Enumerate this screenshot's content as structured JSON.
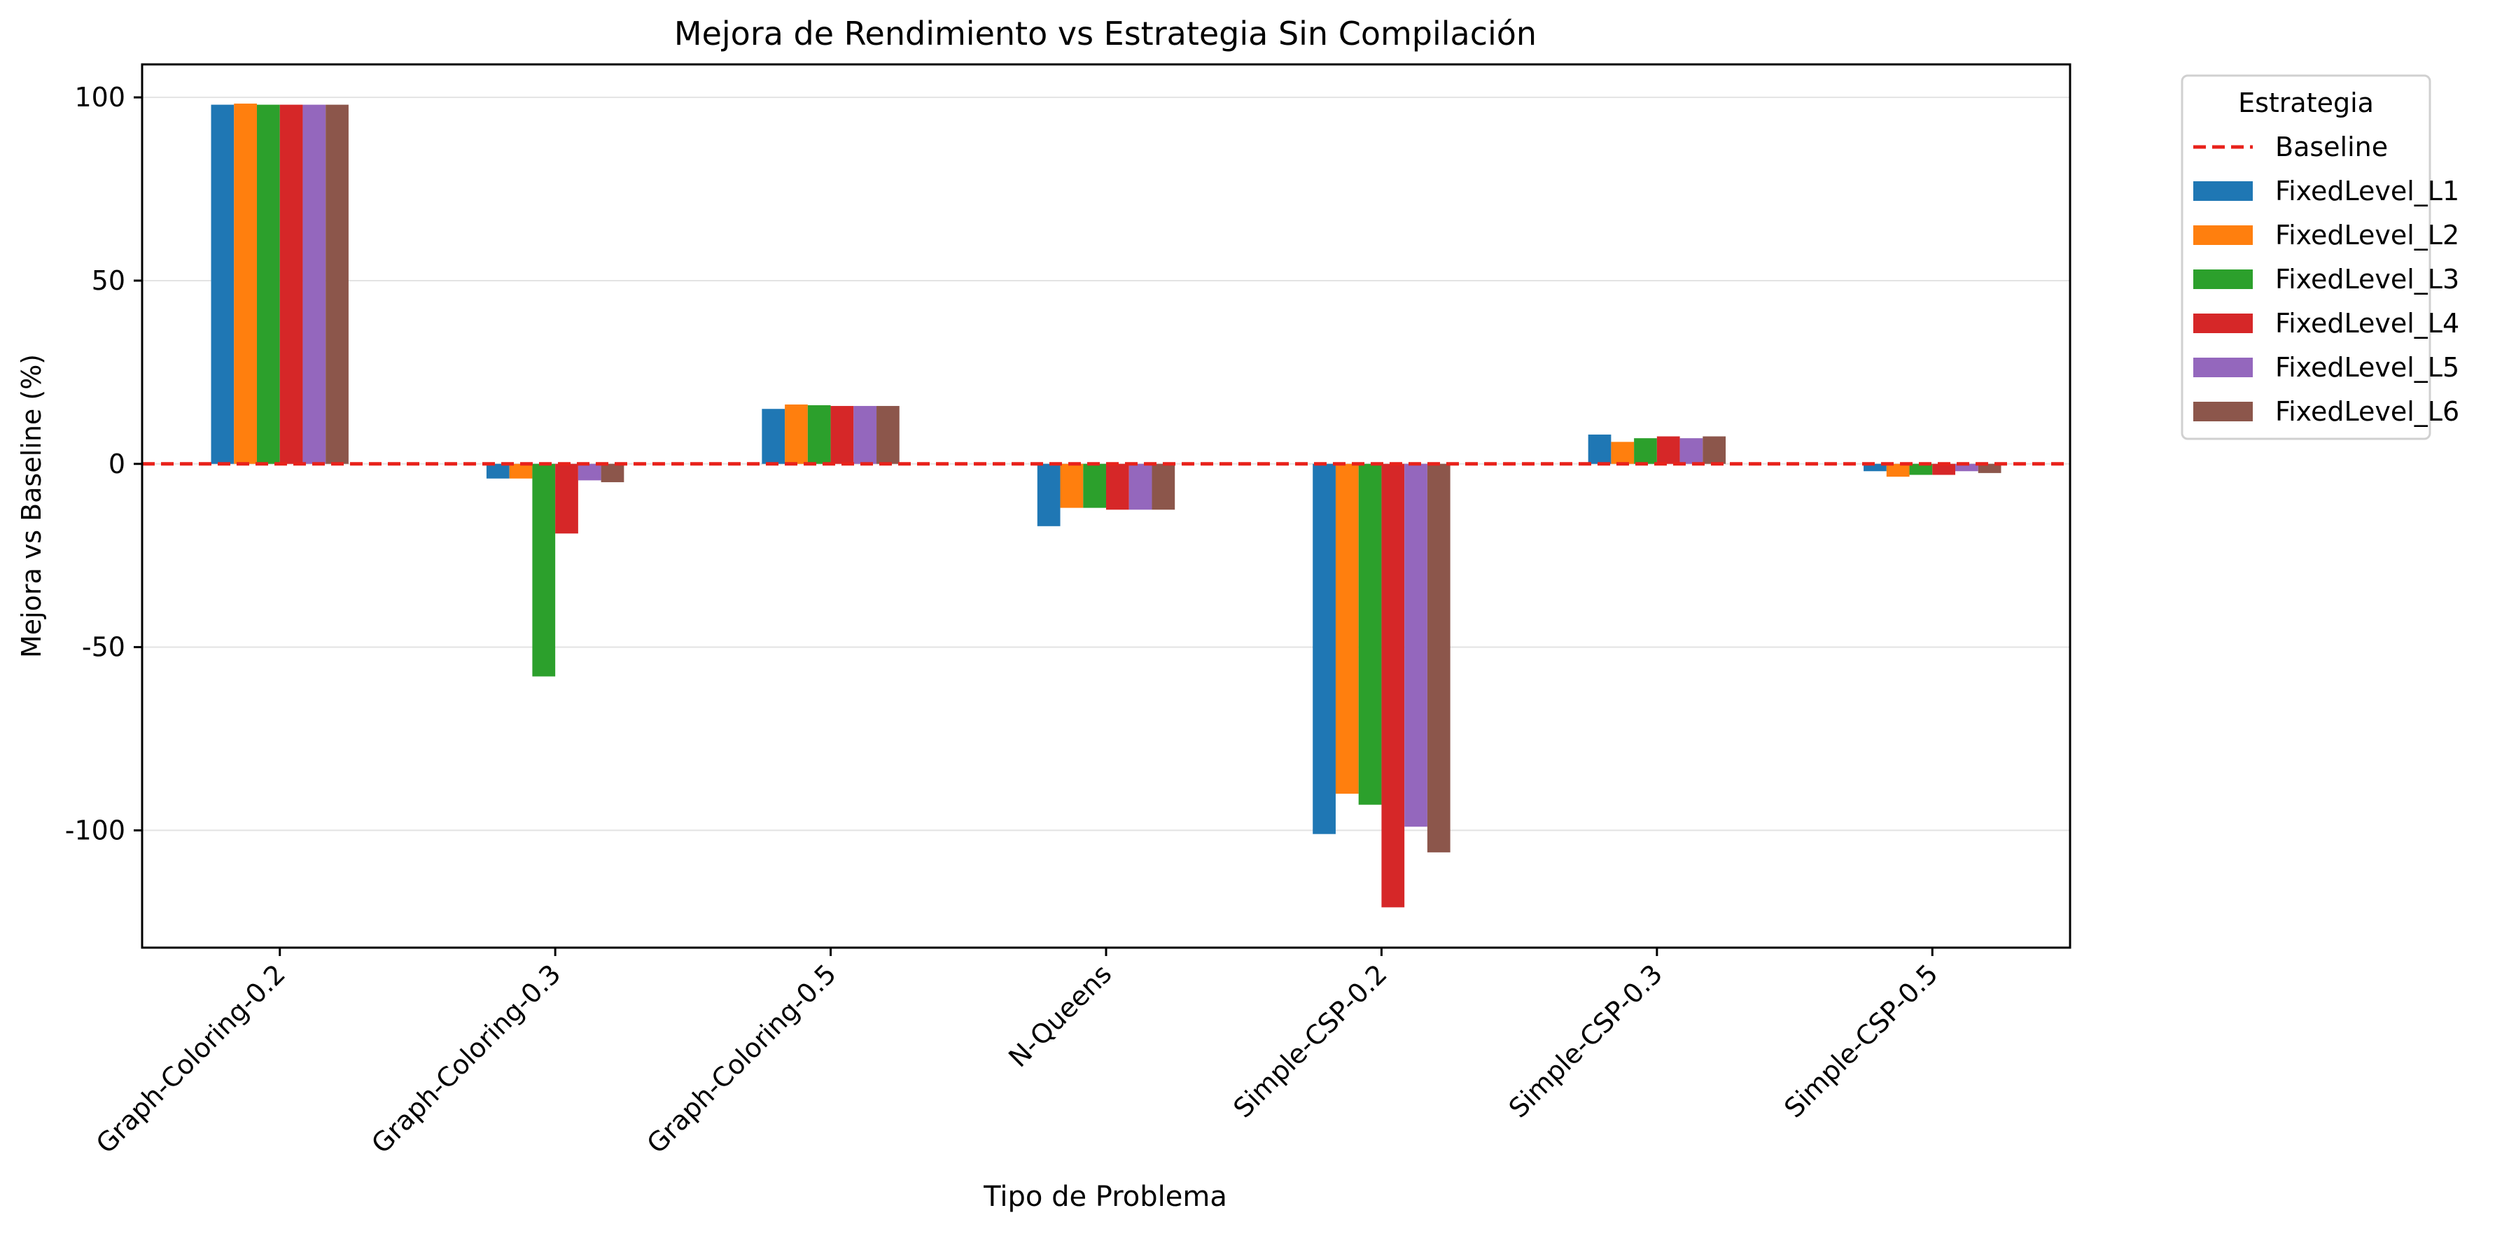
{
  "chart_data": {
    "type": "bar",
    "title": "Mejora de Rendimiento vs Estrategia Sin Compilación",
    "xlabel": "Tipo de Problema",
    "ylabel": "Mejora vs Baseline (%)",
    "ylim": [
      -132,
      109
    ],
    "yticks": [
      100,
      50,
      0,
      -50,
      -100
    ],
    "grid": "horizontal",
    "legend": {
      "title": "Estrategia",
      "position": "outside-top-right"
    },
    "categories": [
      "Graph-Coloring-0.2",
      "Graph-Coloring-0.3",
      "Graph-Coloring-0.5",
      "N-Queens",
      "Simple-CSP-0.2",
      "Simple-CSP-0.3",
      "Simple-CSP-0.5"
    ],
    "baseline": {
      "name": "Baseline",
      "value": 0,
      "color": "#e8221b",
      "style": "dashed"
    },
    "series": [
      {
        "name": "FixedLevel_L1",
        "color": "#1f77b4",
        "values": [
          98,
          -4,
          15,
          -17,
          -101,
          8,
          -2
        ]
      },
      {
        "name": "FixedLevel_L2",
        "color": "#ff7f0e",
        "values": [
          98.3,
          -4,
          16.2,
          -12,
          -90,
          6,
          -3.5
        ]
      },
      {
        "name": "FixedLevel_L3",
        "color": "#2ca02c",
        "values": [
          98,
          -58,
          16,
          -12,
          -93,
          7,
          -3
        ]
      },
      {
        "name": "FixedLevel_L4",
        "color": "#d62728",
        "values": [
          98,
          -19,
          15.8,
          -12.5,
          -121,
          7.5,
          -3
        ]
      },
      {
        "name": "FixedLevel_L5",
        "color": "#9467bd",
        "values": [
          98,
          -4.5,
          15.8,
          -12.5,
          -99,
          7,
          -2
        ]
      },
      {
        "name": "FixedLevel_L6",
        "color": "#8c564b",
        "values": [
          98,
          -5,
          15.8,
          -12.5,
          -106,
          7.5,
          -2.5
        ]
      }
    ]
  }
}
